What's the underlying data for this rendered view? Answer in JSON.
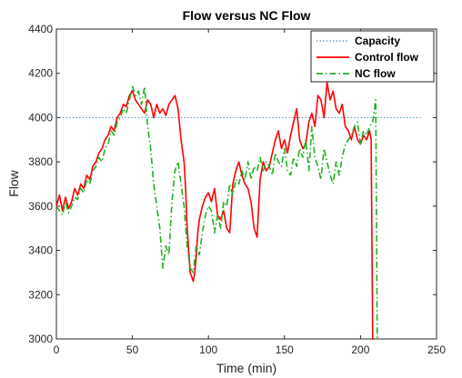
{
  "chart_data": {
    "type": "line",
    "title": "Flow versus NC Flow",
    "xlabel": "Time (min)",
    "ylabel": "Flow",
    "xlim": [
      0,
      250
    ],
    "ylim": [
      3000,
      4400
    ],
    "xticks": [
      0,
      50,
      100,
      150,
      200,
      250
    ],
    "yticks": [
      3000,
      3200,
      3400,
      3600,
      3800,
      4000,
      4200,
      4400
    ],
    "grid": false,
    "legend_position": "top-right",
    "series": [
      {
        "name": "Capacity",
        "style": "dotted",
        "color": "#1f77b4",
        "x": [
          0,
          240
        ],
        "y": [
          4000,
          4000
        ]
      },
      {
        "name": "Control flow",
        "style": "solid",
        "color": "#ff0000",
        "x": [
          0,
          2,
          4,
          6,
          8,
          10,
          12,
          14,
          16,
          18,
          20,
          22,
          24,
          26,
          28,
          30,
          32,
          34,
          36,
          38,
          40,
          42,
          44,
          46,
          48,
          50,
          52,
          54,
          56,
          58,
          60,
          62,
          64,
          66,
          68,
          70,
          72,
          74,
          76,
          78,
          80,
          82,
          84,
          85,
          86,
          87,
          88,
          89,
          90,
          91,
          92,
          93,
          94,
          96,
          98,
          100,
          102,
          104,
          106,
          108,
          110,
          112,
          114,
          116,
          118,
          120,
          122,
          124,
          126,
          128,
          130,
          132,
          134,
          136,
          138,
          140,
          142,
          144,
          146,
          148,
          150,
          152,
          154,
          156,
          158,
          160,
          162,
          164,
          166,
          168,
          170,
          172,
          174,
          176,
          178,
          180,
          182,
          184,
          186,
          188,
          190,
          192,
          194,
          196,
          198,
          200,
          202,
          204,
          206,
          207,
          208,
          209
        ],
        "y": [
          3600,
          3650,
          3580,
          3640,
          3590,
          3620,
          3680,
          3650,
          3700,
          3680,
          3740,
          3720,
          3780,
          3800,
          3840,
          3860,
          3900,
          3920,
          3960,
          3940,
          4000,
          4020,
          4060,
          4050,
          4100,
          4120,
          4080,
          4060,
          4040,
          4020,
          4080,
          4060,
          4000,
          4060,
          4020,
          4040,
          4010,
          4060,
          4080,
          4100,
          4040,
          3900,
          3800,
          3680,
          3500,
          3400,
          3300,
          3280,
          3260,
          3300,
          3380,
          3480,
          3540,
          3600,
          3640,
          3660,
          3620,
          3680,
          3560,
          3540,
          3580,
          3500,
          3480,
          3700,
          3760,
          3800,
          3740,
          3700,
          3680,
          3620,
          3500,
          3460,
          3720,
          3800,
          3760,
          3780,
          3840,
          3900,
          3940,
          3860,
          3900,
          3840,
          3920,
          3980,
          4040,
          3900,
          3860,
          3880,
          3980,
          4020,
          3960,
          4100,
          4080,
          4000,
          4160,
          4080,
          4120,
          4040,
          4020,
          4060,
          3960,
          3940,
          3900,
          3960,
          3900,
          3880,
          3920,
          3900,
          3940,
          3900,
          3000,
          3000
        ]
      },
      {
        "name": "NC flow",
        "style": "dashdot",
        "color": "#22b022",
        "x": [
          0,
          2,
          4,
          6,
          8,
          10,
          12,
          14,
          16,
          18,
          20,
          22,
          24,
          26,
          28,
          30,
          32,
          34,
          36,
          38,
          40,
          42,
          44,
          46,
          48,
          50,
          52,
          54,
          56,
          58,
          60,
          62,
          64,
          66,
          68,
          70,
          72,
          74,
          76,
          78,
          80,
          82,
          84,
          86,
          88,
          90,
          92,
          94,
          96,
          98,
          100,
          102,
          104,
          106,
          108,
          110,
          112,
          114,
          116,
          118,
          120,
          122,
          124,
          126,
          128,
          130,
          132,
          134,
          136,
          138,
          140,
          142,
          144,
          146,
          148,
          150,
          152,
          154,
          156,
          158,
          160,
          162,
          164,
          166,
          168,
          170,
          172,
          174,
          176,
          178,
          180,
          182,
          184,
          186,
          188,
          190,
          192,
          194,
          196,
          198,
          200,
          202,
          204,
          206,
          208,
          210,
          211,
          212
        ],
        "y": [
          3600,
          3580,
          3560,
          3620,
          3570,
          3600,
          3640,
          3630,
          3680,
          3660,
          3720,
          3700,
          3760,
          3780,
          3820,
          3800,
          3860,
          3880,
          3940,
          3920,
          3980,
          4000,
          4040,
          4020,
          4080,
          4140,
          4100,
          4120,
          4060,
          4140,
          3960,
          3860,
          3700,
          3600,
          3500,
          3320,
          3420,
          3380,
          3620,
          3760,
          3800,
          3700,
          3600,
          3420,
          3320,
          3300,
          3420,
          3380,
          3480,
          3560,
          3600,
          3580,
          3480,
          3560,
          3500,
          3620,
          3600,
          3700,
          3650,
          3720,
          3700,
          3760,
          3720,
          3800,
          3720,
          3780,
          3760,
          3820,
          3760,
          3800,
          3780,
          3740,
          3840,
          3800,
          3780,
          3860,
          3760,
          3740,
          3820,
          3780,
          3860,
          3820,
          3900,
          3760,
          3960,
          3820,
          3780,
          3720,
          3860,
          3800,
          3740,
          3700,
          3800,
          3740,
          3820,
          3880,
          3900,
          3920,
          3960,
          3980,
          3880,
          3940,
          3920,
          3960,
          3980,
          4080,
          3000,
          3000
        ]
      }
    ]
  }
}
